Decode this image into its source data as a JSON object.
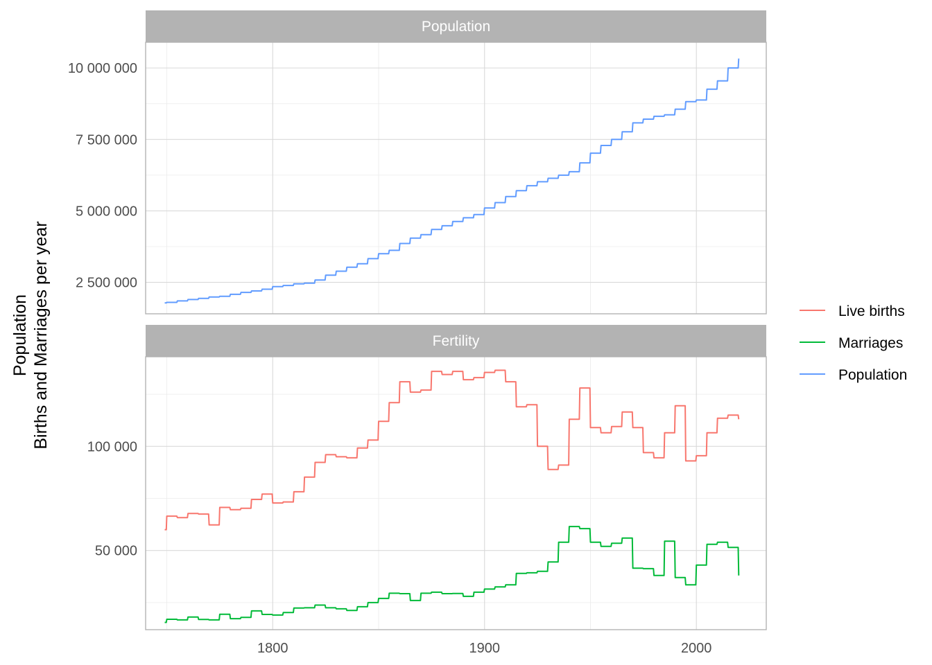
{
  "chart_data": {
    "type": "line",
    "ylabel": [
      "Population",
      "Births and Marriages per year"
    ],
    "xlim": [
      1740,
      2033
    ],
    "x_ticks": [
      1800,
      1900,
      2000
    ],
    "x_tick_labels": [
      "1800",
      "1900",
      "2000"
    ],
    "grid": true,
    "legend_position": "right",
    "legend": [
      {
        "name": "Live births",
        "color": "#F8766D"
      },
      {
        "name": "Marriages",
        "color": "#00BA38"
      },
      {
        "name": "Population",
        "color": "#619CFF"
      }
    ],
    "panels": [
      {
        "title": "Population",
        "ylim": [
          1400000,
          10900000
        ],
        "y_ticks": [
          2500000,
          5000000,
          7500000,
          10000000
        ],
        "y_tick_labels": [
          "2 500 000",
          "5 000 000",
          "7 500 000",
          "10 000 000"
        ],
        "series": [
          {
            "name": "Population",
            "color": "#619CFF",
            "x": [
              1749,
              1750,
              1755,
              1760,
              1765,
              1770,
              1775,
              1780,
              1785,
              1790,
              1795,
              1800,
              1805,
              1810,
              1815,
              1820,
              1825,
              1830,
              1835,
              1840,
              1845,
              1850,
              1855,
              1860,
              1865,
              1870,
              1875,
              1880,
              1885,
              1890,
              1895,
              1900,
              1905,
              1910,
              1915,
              1920,
              1925,
              1930,
              1935,
              1940,
              1945,
              1950,
              1955,
              1960,
              1965,
              1970,
              1975,
              1980,
              1985,
              1990,
              1995,
              2000,
              2005,
              2010,
              2015,
              2020
            ],
            "values": [
              1780000,
              1800000,
              1850000,
              1900000,
              1940000,
              1990000,
              2010000,
              2080000,
              2150000,
              2200000,
              2260000,
              2350000,
              2390000,
              2450000,
              2470000,
              2580000,
              2750000,
              2890000,
              3030000,
              3150000,
              3330000,
              3500000,
              3620000,
              3860000,
              4050000,
              4170000,
              4350000,
              4480000,
              4630000,
              4760000,
              4870000,
              5100000,
              5290000,
              5500000,
              5710000,
              5880000,
              6020000,
              6140000,
              6250000,
              6370000,
              6680000,
              7020000,
              7290000,
              7500000,
              7770000,
              8080000,
              8210000,
              8310000,
              8360000,
              8560000,
              8820000,
              8880000,
              9260000,
              9550000,
              10000000,
              10330000
            ]
          }
        ]
      },
      {
        "title": "Fertility",
        "ylim": [
          12000,
          143000
        ],
        "y_ticks": [
          50000,
          100000
        ],
        "y_tick_labels": [
          "50 000",
          "100 000"
        ],
        "series": [
          {
            "name": "Live births",
            "color": "#F8766D",
            "x": [
              1749,
              1750,
              1755,
              1760,
              1765,
              1770,
              1775,
              1780,
              1785,
              1790,
              1795,
              1800,
              1805,
              1810,
              1815,
              1820,
              1825,
              1830,
              1835,
              1840,
              1845,
              1850,
              1855,
              1860,
              1865,
              1870,
              1875,
              1880,
              1885,
              1890,
              1895,
              1900,
              1905,
              1910,
              1915,
              1920,
              1925,
              1930,
              1935,
              1940,
              1945,
              1950,
              1955,
              1960,
              1965,
              1970,
              1975,
              1980,
              1985,
              1990,
              1995,
              2000,
              2005,
              2010,
              2015,
              2020
            ],
            "values": [
              60000,
              66500,
              65800,
              67800,
              67500,
              62300,
              70700,
              69600,
              70300,
              74500,
              77100,
              72800,
              73300,
              78200,
              85200,
              92300,
              96000,
              95000,
              94500,
              99200,
              103000,
              112000,
              121000,
              131000,
              126000,
              127000,
              136000,
              134500,
              136000,
              132000,
              133000,
              135500,
              136500,
              131000,
              119000,
              120000,
              100000,
              88900,
              91000,
              113000,
              128000,
              109000,
              106500,
              109500,
              116500,
              109000,
              97000,
              94500,
              106500,
              119500,
              93000,
              95500,
              106500,
              113500,
              115000,
              113000
            ]
          },
          {
            "name": "Marriages",
            "color": "#00BA38",
            "x": [
              1749,
              1750,
              1755,
              1760,
              1765,
              1770,
              1775,
              1780,
              1785,
              1790,
              1795,
              1800,
              1805,
              1810,
              1815,
              1820,
              1825,
              1830,
              1835,
              1840,
              1845,
              1850,
              1855,
              1860,
              1865,
              1870,
              1875,
              1880,
              1885,
              1890,
              1895,
              1900,
              1905,
              1910,
              1915,
              1920,
              1925,
              1930,
              1935,
              1940,
              1945,
              1950,
              1955,
              1960,
              1965,
              1970,
              1975,
              1980,
              1985,
              1990,
              1995,
              2000,
              2005,
              2010,
              2015,
              2020
            ],
            "values": [
              15500,
              17000,
              16700,
              18100,
              16900,
              16700,
              19400,
              17300,
              17900,
              21000,
              19300,
              19000,
              20200,
              22400,
              22500,
              23800,
              22500,
              22000,
              21200,
              23000,
              25000,
              27000,
              29500,
              29300,
              26000,
              29500,
              30000,
              29300,
              29400,
              28000,
              30000,
              31500,
              32500,
              33500,
              39000,
              39300,
              40000,
              44500,
              54000,
              61500,
              60500,
              54000,
              52000,
              53500,
              56000,
              41500,
              41300,
              38000,
              54500,
              37000,
              33500,
              43000,
              53000,
              54000,
              51500,
              38000
            ]
          }
        ]
      }
    ]
  }
}
